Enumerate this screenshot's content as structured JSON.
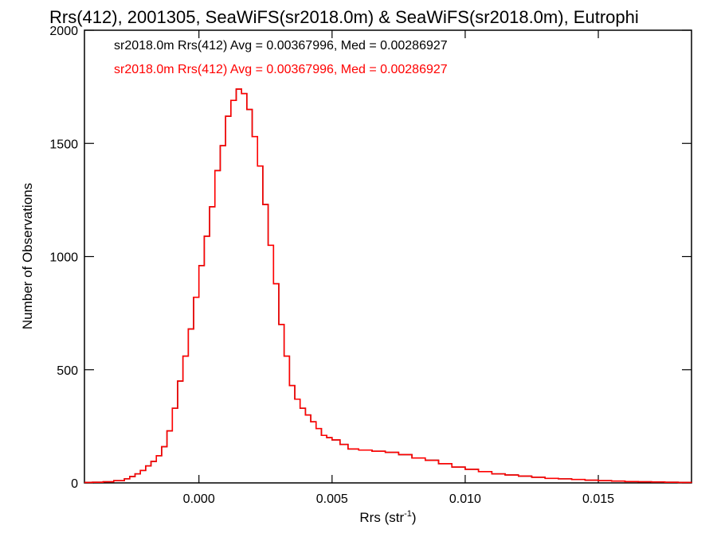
{
  "chart_data": {
    "type": "line",
    "title": "Rrs(412), 2001305, SeaWiFS(sr2018.0m) & SeaWiFS(sr2018.0m), Eutrophi",
    "xlabel": "Rrs (str",
    "xlabel_sup": "-1",
    "xlabel_close": ")",
    "ylabel": "Number of Observations",
    "xlim": [
      -0.0043,
      0.0185
    ],
    "ylim": [
      0,
      2000
    ],
    "xticks": [
      0.0,
      0.005,
      0.01,
      0.015
    ],
    "xtick_labels": [
      "0.000",
      "0.005",
      "0.010",
      "0.015"
    ],
    "yticks": [
      0,
      500,
      1000,
      1500,
      2000
    ],
    "ytick_labels": [
      "0",
      "500",
      "1000",
      "1500",
      "2000"
    ],
    "step": true,
    "series": [
      {
        "name": "sr2018.0m Rrs(412) Avg = 0.00367996, Med = 0.00286927",
        "color": "#000000",
        "x": [
          -0.0043,
          -0.004,
          -0.0036,
          -0.0032,
          -0.0028,
          -0.0026,
          -0.0024,
          -0.0022,
          -0.002,
          -0.0018,
          -0.0016,
          -0.0014,
          -0.0012,
          -0.001,
          -0.0008,
          -0.0006,
          -0.0004,
          -0.0002,
          0.0,
          0.0002,
          0.0004,
          0.0006,
          0.0008,
          0.001,
          0.0012,
          0.0014,
          0.0016,
          0.0018,
          0.002,
          0.0022,
          0.0024,
          0.0026,
          0.0028,
          0.003,
          0.0032,
          0.0034,
          0.0036,
          0.0038,
          0.004,
          0.0042,
          0.0044,
          0.0046,
          0.0048,
          0.005,
          0.0053,
          0.0056,
          0.006,
          0.0065,
          0.007,
          0.0075,
          0.008,
          0.0085,
          0.009,
          0.0095,
          0.01,
          0.0105,
          0.011,
          0.0115,
          0.012,
          0.0125,
          0.013,
          0.0135,
          0.014,
          0.0145,
          0.015,
          0.0155,
          0.016,
          0.0165,
          0.017,
          0.0175,
          0.018,
          0.0185
        ],
        "y": [
          2,
          3,
          5,
          10,
          18,
          28,
          40,
          55,
          75,
          95,
          120,
          160,
          230,
          330,
          450,
          560,
          680,
          820,
          960,
          1090,
          1220,
          1380,
          1490,
          1620,
          1690,
          1740,
          1720,
          1650,
          1530,
          1400,
          1230,
          1050,
          880,
          700,
          560,
          430,
          370,
          330,
          300,
          270,
          240,
          210,
          200,
          190,
          170,
          150,
          145,
          140,
          135,
          125,
          110,
          100,
          85,
          70,
          60,
          50,
          40,
          35,
          30,
          25,
          20,
          18,
          15,
          12,
          10,
          8,
          6,
          5,
          4,
          3,
          2,
          1
        ]
      },
      {
        "name": "sr2018.0m Rrs(412) Avg = 0.00367996, Med = 0.00286927",
        "color": "#ff0000",
        "x": [
          -0.0043,
          -0.004,
          -0.0036,
          -0.0032,
          -0.0028,
          -0.0026,
          -0.0024,
          -0.0022,
          -0.002,
          -0.0018,
          -0.0016,
          -0.0014,
          -0.0012,
          -0.001,
          -0.0008,
          -0.0006,
          -0.0004,
          -0.0002,
          0.0,
          0.0002,
          0.0004,
          0.0006,
          0.0008,
          0.001,
          0.0012,
          0.0014,
          0.0016,
          0.0018,
          0.002,
          0.0022,
          0.0024,
          0.0026,
          0.0028,
          0.003,
          0.0032,
          0.0034,
          0.0036,
          0.0038,
          0.004,
          0.0042,
          0.0044,
          0.0046,
          0.0048,
          0.005,
          0.0053,
          0.0056,
          0.006,
          0.0065,
          0.007,
          0.0075,
          0.008,
          0.0085,
          0.009,
          0.0095,
          0.01,
          0.0105,
          0.011,
          0.0115,
          0.012,
          0.0125,
          0.013,
          0.0135,
          0.014,
          0.0145,
          0.015,
          0.0155,
          0.016,
          0.0165,
          0.017,
          0.0175,
          0.018,
          0.0185
        ],
        "y": [
          2,
          3,
          5,
          10,
          18,
          28,
          40,
          55,
          75,
          95,
          120,
          160,
          230,
          330,
          450,
          560,
          680,
          820,
          960,
          1090,
          1220,
          1380,
          1490,
          1620,
          1690,
          1740,
          1720,
          1650,
          1530,
          1400,
          1230,
          1050,
          880,
          700,
          560,
          430,
          370,
          330,
          300,
          270,
          240,
          210,
          200,
          190,
          170,
          150,
          145,
          140,
          135,
          125,
          110,
          100,
          85,
          70,
          60,
          50,
          40,
          35,
          30,
          25,
          20,
          18,
          15,
          12,
          10,
          8,
          6,
          5,
          4,
          3,
          2,
          1
        ]
      }
    ],
    "grid": false,
    "legend_position": "top-left"
  }
}
